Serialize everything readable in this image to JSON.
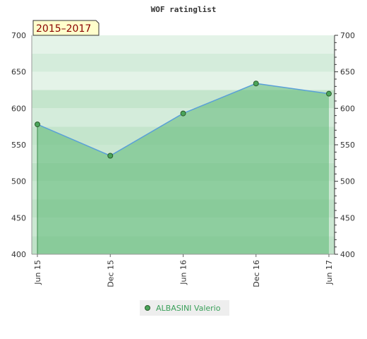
{
  "chart_data": {
    "type": "area",
    "title": "WOF ratinglist",
    "badge": "2015–2017",
    "categories": [
      "Jun 15",
      "Dec 15",
      "Jun 16",
      "Dec 16",
      "Jun 17"
    ],
    "series": [
      {
        "name": "ALBASINI Valerio",
        "values": [
          578,
          535,
          593,
          634,
          620
        ]
      }
    ],
    "ylim": [
      400,
      700
    ],
    "yticks": [
      "400",
      "450",
      "500",
      "550",
      "600",
      "650",
      "700"
    ],
    "xlabel": "",
    "ylabel": "",
    "grid": true,
    "legend_position": "bottom",
    "colors": {
      "line": "#5aa0d8",
      "area": "#7ac08a",
      "marker": "#4aa55a",
      "band_light": "#e0f0e4",
      "band_mid": "#c8e6d0",
      "band_dark": "#a8d8b4",
      "badge_bg": "#ffffcc",
      "badge_text": "#8b0000"
    }
  }
}
